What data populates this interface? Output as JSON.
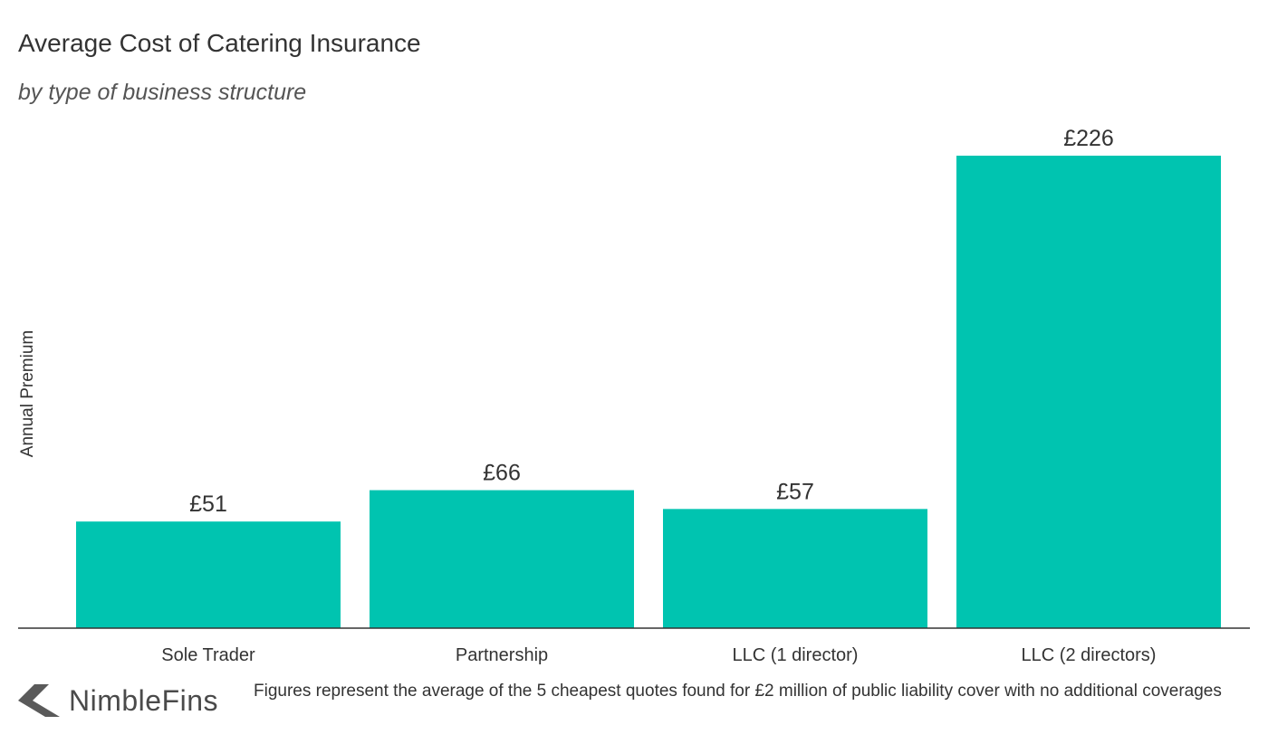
{
  "title": "Average Cost of Catering Insurance",
  "subtitle": "by type of business structure",
  "brand": {
    "name": "NimbleFins",
    "logo_icon": "chevron-left-arrow-icon"
  },
  "footnote": "Figures represent the average of the 5 cheapest quotes found for £2 million of public liability cover with no additional coverages",
  "colors": {
    "bar": "#00c4b0",
    "axis": "#333333",
    "text": "#333333",
    "logo": "#5a5a5a"
  },
  "chart_data": {
    "type": "bar",
    "title": "Average Cost of Catering Insurance",
    "subtitle": "by type of business structure",
    "xlabel": "",
    "ylabel": "Annual Premium",
    "categories": [
      "Sole Trader",
      "Partnership",
      "LLC (1 director)",
      "LLC (2 directors)"
    ],
    "values": [
      51,
      66,
      57,
      226
    ],
    "data_labels": [
      "£51",
      "£66",
      "£57",
      "£226"
    ],
    "ylim": [
      0,
      226
    ],
    "grid": false,
    "legend": "none"
  }
}
